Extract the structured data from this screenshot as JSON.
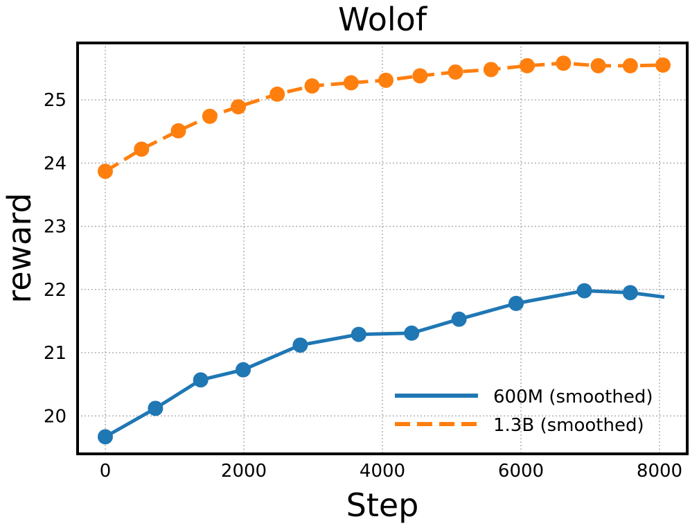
{
  "chart_data": {
    "type": "line",
    "title": "Wolof",
    "xlabel": "Step",
    "ylabel": "reward",
    "xlim": [
      -400,
      8400
    ],
    "ylim": [
      19.4,
      25.9
    ],
    "xticks": [
      0,
      2000,
      4000,
      6000,
      8000
    ],
    "yticks": [
      20,
      21,
      22,
      23,
      24,
      25
    ],
    "grid": true,
    "legend_position": "bottom-right",
    "series": [
      {
        "name": "600M (smoothed)",
        "color": "#1f77b4",
        "style": "solid",
        "x": [
          0,
          724,
          1377,
          1990,
          2814,
          3658,
          4422,
          5106,
          5930,
          6915,
          7578,
          8070
        ],
        "y": [
          19.67,
          20.12,
          20.57,
          20.73,
          21.12,
          21.29,
          21.31,
          21.53,
          21.78,
          21.98,
          21.95,
          21.88
        ],
        "markers_x": [
          0,
          724,
          1377,
          1990,
          2814,
          3658,
          4422,
          5106,
          5930,
          6915,
          7578
        ],
        "markers_y": [
          19.67,
          20.12,
          20.57,
          20.73,
          21.12,
          21.29,
          21.31,
          21.53,
          21.78,
          21.98,
          21.95
        ]
      },
      {
        "name": "1.3B (smoothed)",
        "color": "#ff7f0e",
        "style": "dashed",
        "x": [
          0,
          523,
          1055,
          1508,
          1920,
          2482,
          2985,
          3548,
          4050,
          4543,
          5055,
          5568,
          6090,
          6613,
          7116,
          7578,
          8050
        ],
        "y": [
          23.87,
          24.22,
          24.51,
          24.74,
          24.89,
          25.09,
          25.22,
          25.27,
          25.31,
          25.38,
          25.44,
          25.48,
          25.54,
          25.58,
          25.54,
          25.54,
          25.55
        ],
        "markers_x": [
          0,
          523,
          1055,
          1508,
          1920,
          2482,
          2985,
          3548,
          4050,
          4543,
          5055,
          5568,
          6090,
          6613,
          7116,
          7578,
          8050
        ],
        "markers_y": [
          23.87,
          24.22,
          24.51,
          24.74,
          24.89,
          25.09,
          25.22,
          25.27,
          25.31,
          25.38,
          25.44,
          25.48,
          25.54,
          25.58,
          25.54,
          25.54,
          25.55
        ]
      }
    ]
  }
}
